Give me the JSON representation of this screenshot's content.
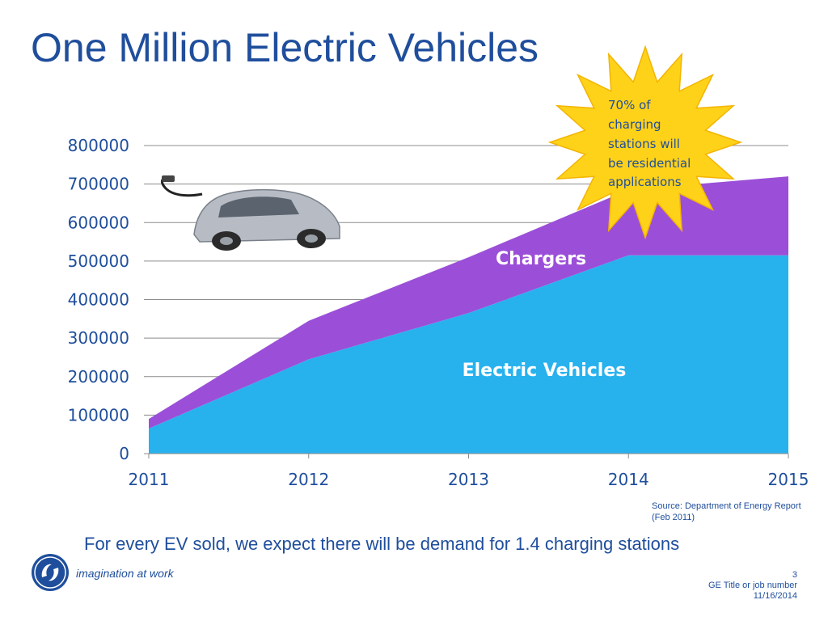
{
  "slide": {
    "title": "One Million Electric Vehicles",
    "footer_text": "For every EV sold, we expect there will be demand for 1.4 charging stations",
    "source_note": "Source: Department of Energy Report (Feb 2011)",
    "tagline": "imagination at work",
    "page_number": "3",
    "job_title": "GE Title or job number",
    "date": "11/16/2014"
  },
  "callout": {
    "lines": [
      "70% of",
      "charging",
      "stations will",
      "be residential",
      "applications"
    ]
  },
  "colors": {
    "title": "#1f4e9c",
    "ev_area": "#27b2ee",
    "chargers_area": "#9b4fd8",
    "starburst": "#ffd21a"
  },
  "icons": [
    "electric-car-icon",
    "starburst-icon",
    "ge-logo-icon"
  ],
  "chart_data": {
    "type": "area",
    "stacked": true,
    "x": [
      "2011",
      "2012",
      "2013",
      "2014",
      "2015"
    ],
    "series": [
      {
        "name": "Electric Vehicles",
        "values": [
          65000,
          245000,
          365000,
          515000,
          515000
        ]
      },
      {
        "name": "Chargers",
        "values": [
          25000,
          100000,
          145000,
          170000,
          205000
        ]
      }
    ],
    "y_ticks": [
      "0",
      "100000",
      "200000",
      "300000",
      "400000",
      "500000",
      "600000",
      "700000",
      "800000"
    ],
    "ylim": [
      0,
      800000
    ],
    "grid": true,
    "legend": "labels inside areas"
  }
}
